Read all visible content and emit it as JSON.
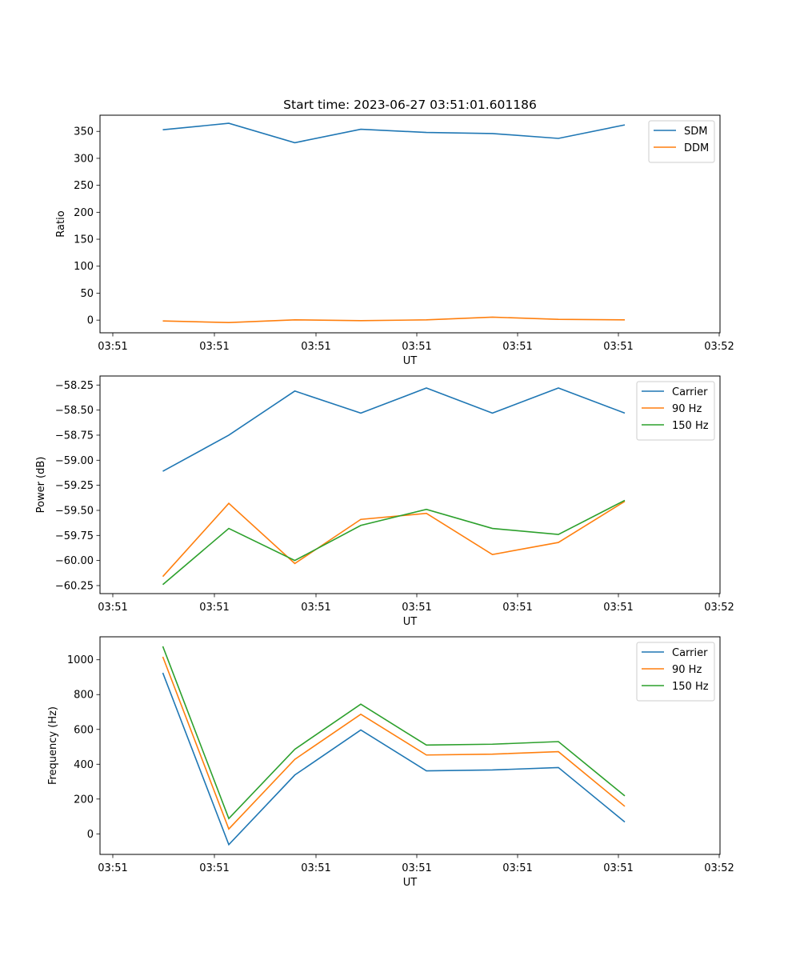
{
  "chart_data": [
    {
      "type": "line",
      "title": "Start time: 2023-06-27 03:51:01.601186",
      "xlabel": "UT",
      "ylabel": "Ratio",
      "x_tick_labels": [
        "03:51",
        "03:51",
        "03:51",
        "03:51",
        "03:51",
        "03:51",
        "03:52"
      ],
      "yticks": [
        0,
        50,
        100,
        150,
        200,
        250,
        300,
        350
      ],
      "ylim": [
        -23.5,
        380
      ],
      "grid": false,
      "legend": "upper right",
      "series": [
        {
          "name": "SDM",
          "color": "#1f77b4",
          "values": [
            353,
            365,
            329,
            354,
            348,
            346,
            337,
            362
          ]
        },
        {
          "name": "DDM",
          "color": "#ff7f0e",
          "values": [
            -1.5,
            -4.5,
            0.5,
            -1.0,
            0.5,
            5.5,
            1.5,
            0.5
          ]
        }
      ]
    },
    {
      "type": "line",
      "title": "",
      "xlabel": "UT",
      "ylabel": "Power (dB)",
      "x_tick_labels": [
        "03:51",
        "03:51",
        "03:51",
        "03:51",
        "03:51",
        "03:51",
        "03:52"
      ],
      "yticks": [
        -60.25,
        -60.0,
        -59.75,
        -59.5,
        -59.25,
        -59.0,
        -58.75,
        -58.5,
        -58.25
      ],
      "ytick_labels": [
        "−60.25",
        "−60.00",
        "−59.75",
        "−59.50",
        "−59.25",
        "−59.00",
        "−58.75",
        "−58.50",
        "−58.25"
      ],
      "ylim": [
        -60.33,
        -58.16
      ],
      "grid": false,
      "legend": "upper right",
      "series": [
        {
          "name": "Carrier",
          "color": "#1f77b4",
          "values": [
            -59.11,
            -58.75,
            -58.31,
            -58.53,
            -58.28,
            -58.53,
            -58.28,
            -58.53
          ]
        },
        {
          "name": "90 Hz",
          "color": "#ff7f0e",
          "values": [
            -60.16,
            -59.43,
            -60.03,
            -59.59,
            -59.53,
            -59.94,
            -59.82,
            -59.41
          ]
        },
        {
          "name": "150 Hz",
          "color": "#2ca02c",
          "values": [
            -60.24,
            -59.68,
            -60.0,
            -59.65,
            -59.49,
            -59.68,
            -59.74,
            -59.4
          ]
        }
      ]
    },
    {
      "type": "line",
      "title": "",
      "xlabel": "UT",
      "ylabel": "Frequency (Hz)",
      "x_tick_labels": [
        "03:51",
        "03:51",
        "03:51",
        "03:51",
        "03:51",
        "03:51",
        "03:52"
      ],
      "yticks": [
        0,
        200,
        400,
        600,
        800,
        1000
      ],
      "ylim": [
        -118,
        1132
      ],
      "grid": false,
      "legend": "upper right",
      "series": [
        {
          "name": "Carrier",
          "color": "#1f77b4",
          "values": [
            925,
            -62,
            338,
            597,
            362,
            367,
            381,
            68
          ]
        },
        {
          "name": "90 Hz",
          "color": "#ff7f0e",
          "values": [
            1017,
            28,
            428,
            687,
            453,
            458,
            472,
            158
          ]
        },
        {
          "name": "150 Hz",
          "color": "#2ca02c",
          "values": [
            1077,
            88,
            486,
            745,
            510,
            515,
            530,
            218
          ]
        }
      ]
    }
  ]
}
